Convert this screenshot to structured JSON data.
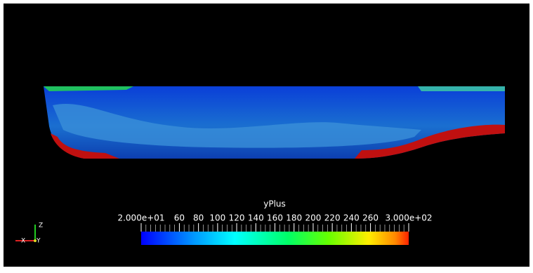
{
  "colorbar": {
    "title": "yPlus",
    "range": [
      20,
      300
    ],
    "ticks": [
      {
        "value": 20,
        "label": "2.000e+01"
      },
      60,
      80,
      100,
      120,
      140,
      160,
      180,
      200,
      220,
      240,
      260,
      {
        "value": 300,
        "label": "3.000e+02"
      }
    ]
  },
  "axes": {
    "z": "Z",
    "x": "X",
    "y": "Y"
  }
}
